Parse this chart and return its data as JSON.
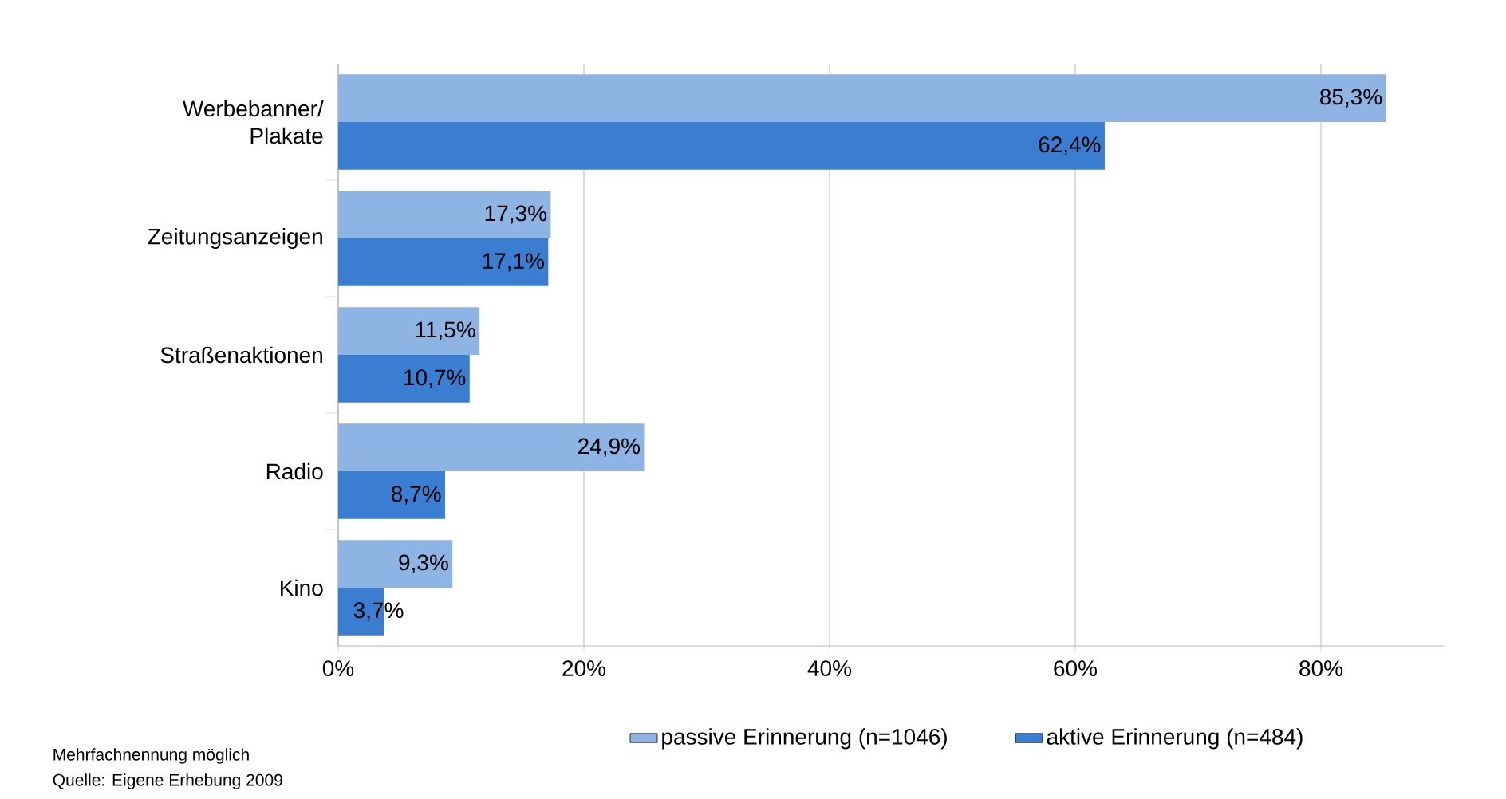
{
  "chart_data": {
    "type": "bar",
    "orientation": "horizontal",
    "categories": [
      "Werbebanner/ Plakate",
      "Zeitungsanzeigen",
      "Straßenaktionen",
      "Radio",
      "Kino"
    ],
    "series": [
      {
        "name": "passive Erinnerung (n=1046)",
        "color": "#8eb4e3",
        "values": [
          85.3,
          17.3,
          11.5,
          24.9,
          9.3
        ],
        "value_labels": [
          "85,3%",
          "17,3%",
          "11,5%",
          "24,9%",
          "9,3%"
        ]
      },
      {
        "name": "aktive Erinnerung (n=484)",
        "color": "#3b7dd1",
        "values": [
          62.4,
          17.1,
          10.7,
          8.7,
          3.7
        ],
        "value_labels": [
          "62,4%",
          "17,1%",
          "10,7%",
          "8,7%",
          "3,7%"
        ]
      }
    ],
    "xlim": [
      0,
      90
    ],
    "xticks": [
      {
        "value": 0,
        "label": "0%"
      },
      {
        "value": 20,
        "label": "20%"
      },
      {
        "value": 40,
        "label": "40%"
      },
      {
        "value": 60,
        "label": "60%"
      },
      {
        "value": 80,
        "label": "80%"
      }
    ],
    "grid": "x",
    "legend": "bottom",
    "annotations": [
      "Mehrfachnennung möglich",
      "Quelle: Eigene Erhebung 2009"
    ]
  }
}
